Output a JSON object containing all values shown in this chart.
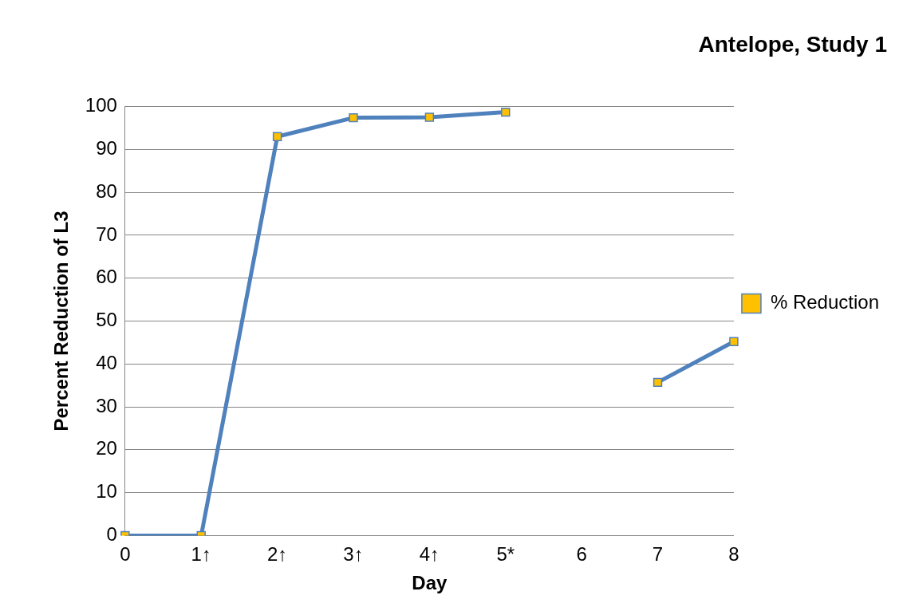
{
  "chart_data": {
    "type": "line",
    "title": "Antelope, Study 1",
    "xlabel": "Day",
    "ylabel": "Percent Reduction of L3",
    "categories": [
      "0",
      "1↑",
      "2↑",
      "3↑",
      "4↑",
      "5*",
      "6",
      "7",
      "8"
    ],
    "series": [
      {
        "name": "% Reduction",
        "color": "#4f81bd",
        "values": [
          0,
          0,
          93,
          97.4,
          97.5,
          98.7,
          null,
          35.7,
          45.2
        ]
      }
    ],
    "ylim": [
      0,
      100
    ],
    "yticks": [
      0,
      10,
      20,
      30,
      40,
      50,
      60,
      70,
      80,
      90,
      100
    ],
    "grid": "y",
    "legend": "right",
    "marker": "square",
    "line_style": "solid"
  }
}
